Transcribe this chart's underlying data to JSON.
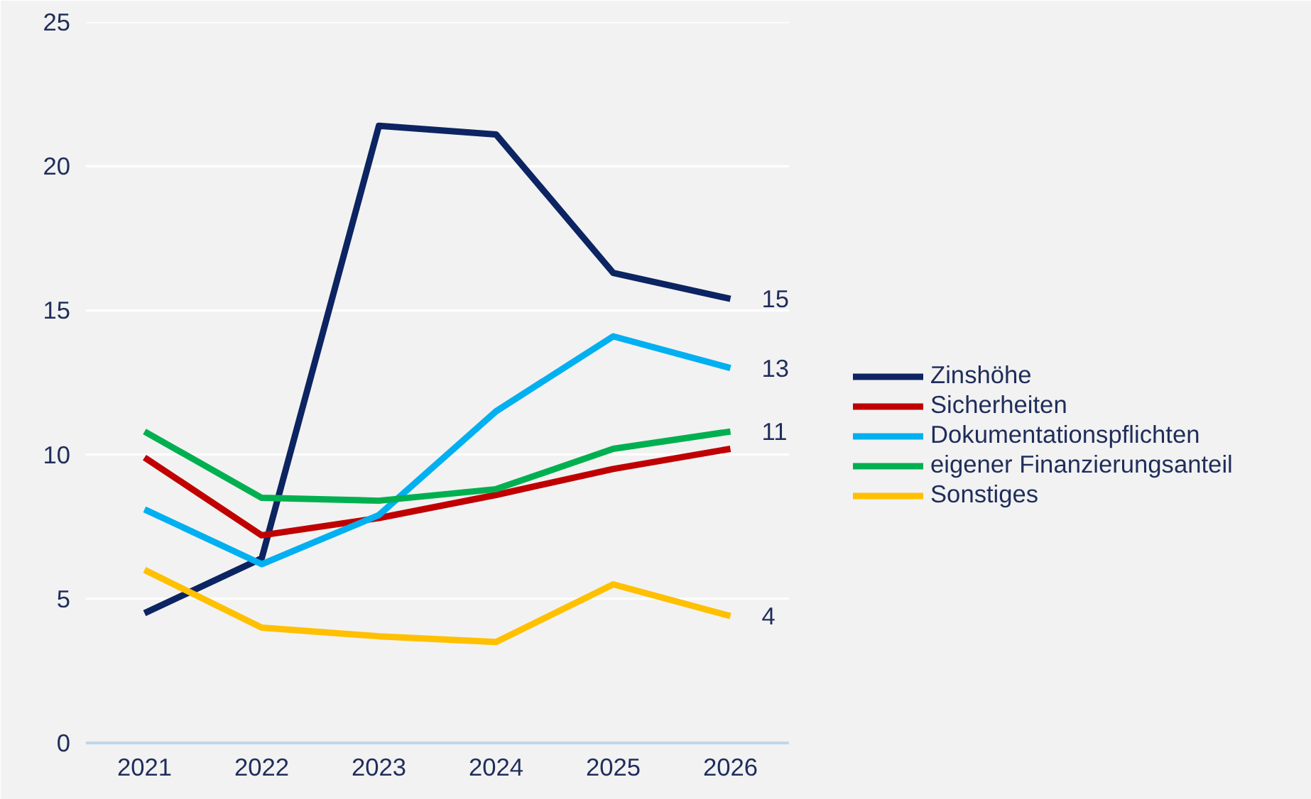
{
  "chart_data": {
    "type": "line",
    "categories": [
      "2021",
      "2022",
      "2023",
      "2024",
      "2025",
      "2026"
    ],
    "series": [
      {
        "name": "Zinshöhe",
        "color": "#0c2461",
        "values": [
          4.5,
          6.4,
          21.4,
          21.1,
          16.3,
          15.4
        ],
        "value_labels": [
          null,
          null,
          null,
          null,
          null,
          "15"
        ]
      },
      {
        "name": "Sicherheiten",
        "color": "#c00000",
        "values": [
          9.9,
          7.2,
          7.8,
          8.6,
          9.5,
          10.2
        ]
      },
      {
        "name": "Dokumentationspflichten",
        "color": "#00b0f0",
        "values": [
          8.1,
          6.2,
          7.9,
          11.5,
          14.1,
          13.0
        ],
        "value_labels": [
          null,
          null,
          null,
          null,
          null,
          "13"
        ]
      },
      {
        "name": "eigener Finanzierungsanteil",
        "color": "#00b050",
        "values": [
          10.8,
          8.5,
          8.4,
          8.8,
          10.2,
          10.8
        ],
        "value_labels": [
          null,
          null,
          null,
          null,
          null,
          "11"
        ]
      },
      {
        "name": "Sonstiges",
        "color": "#ffc000",
        "values": [
          6.0,
          4.0,
          3.7,
          3.5,
          5.5,
          4.4
        ],
        "value_labels": [
          null,
          null,
          null,
          null,
          null,
          "4"
        ]
      }
    ],
    "ylim": [
      0,
      25
    ],
    "yticks": [
      0,
      5,
      10,
      15,
      20,
      25
    ],
    "grid": "y",
    "legend": "right",
    "marker": "none",
    "line_style": "solid"
  }
}
